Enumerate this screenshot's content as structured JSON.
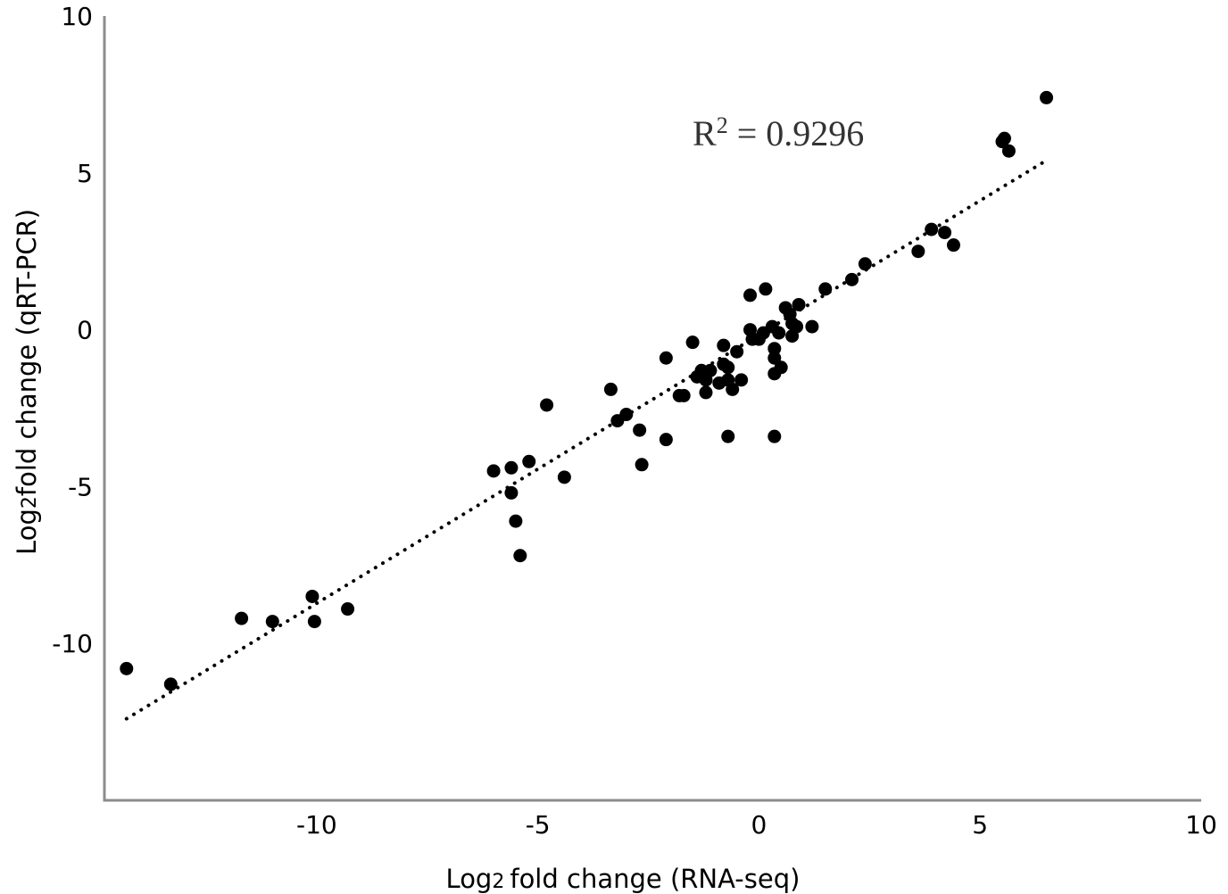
{
  "chart_data": {
    "type": "scatter",
    "xlabel": {
      "prefix": "Log",
      "sub": "2",
      "rest": "fold change (RNA-seq)"
    },
    "ylabel": {
      "prefix": "Log",
      "sub": "2",
      "rest": "fold change (qRT-PCR)"
    },
    "annotation": {
      "base": "R",
      "sup": "2",
      "rest": " = 0.9296"
    },
    "x_ticks": [
      {
        "value": -10,
        "label": "-10"
      },
      {
        "value": -5,
        "label": "-5"
      },
      {
        "value": 0,
        "label": "0"
      },
      {
        "value": 5,
        "label": "5"
      },
      {
        "value": 10,
        "label": "10"
      }
    ],
    "y_ticks": [
      {
        "value": 10,
        "label": "10"
      },
      {
        "value": 5,
        "label": "5"
      },
      {
        "value": 0,
        "label": "0"
      },
      {
        "value": -5,
        "label": "-5"
      },
      {
        "value": -10,
        "label": "-10"
      }
    ],
    "xlim": [
      -14.8,
      10
    ],
    "ylim": [
      -15,
      10
    ],
    "grid": false,
    "trendline": {
      "x": [
        -14.3,
        6.5
      ],
      "y": [
        -12.4,
        5.4
      ],
      "style": "dotted"
    },
    "series": [
      {
        "points": [
          [
            -14.3,
            -10.8
          ],
          [
            -13.3,
            -11.3
          ],
          [
            -11.7,
            -9.2
          ],
          [
            -11.0,
            -9.3
          ],
          [
            -10.1,
            -8.5
          ],
          [
            -10.05,
            -9.3
          ],
          [
            -9.3,
            -8.9
          ],
          [
            -6.0,
            -4.5
          ],
          [
            -5.6,
            -4.4
          ],
          [
            -5.6,
            -5.2
          ],
          [
            -5.5,
            -6.1
          ],
          [
            -5.4,
            -7.2
          ],
          [
            -5.2,
            -4.2
          ],
          [
            -4.8,
            -2.4
          ],
          [
            -4.4,
            -4.7
          ],
          [
            -3.35,
            -1.9
          ],
          [
            -3.2,
            -2.9
          ],
          [
            -3.0,
            -2.7
          ],
          [
            -2.7,
            -3.2
          ],
          [
            -2.65,
            -4.3
          ],
          [
            -2.1,
            -0.9
          ],
          [
            -2.1,
            -3.5
          ],
          [
            -1.8,
            -2.1
          ],
          [
            -1.7,
            -2.1
          ],
          [
            -1.5,
            -0.4
          ],
          [
            -1.4,
            -1.5
          ],
          [
            -1.3,
            -1.3
          ],
          [
            -1.2,
            -1.6
          ],
          [
            -1.2,
            -2.0
          ],
          [
            -1.1,
            -1.3
          ],
          [
            -0.9,
            -1.7
          ],
          [
            -0.8,
            -1.1
          ],
          [
            -0.8,
            -0.5
          ],
          [
            -0.7,
            -1.2
          ],
          [
            -0.7,
            -1.6
          ],
          [
            -0.7,
            -3.4
          ],
          [
            -0.6,
            -1.9
          ],
          [
            -0.5,
            -0.7
          ],
          [
            -0.4,
            -1.6
          ],
          [
            -0.2,
            1.1
          ],
          [
            -0.2,
            0.0
          ],
          [
            -0.15,
            -0.3
          ],
          [
            0.0,
            -0.3
          ],
          [
            0.1,
            -0.1
          ],
          [
            0.15,
            1.3
          ],
          [
            0.3,
            0.1
          ],
          [
            0.35,
            -0.6
          ],
          [
            0.35,
            -0.9
          ],
          [
            0.35,
            -1.4
          ],
          [
            0.35,
            -3.4
          ],
          [
            0.45,
            -0.1
          ],
          [
            0.5,
            -1.2
          ],
          [
            0.6,
            0.7
          ],
          [
            0.7,
            0.5
          ],
          [
            0.75,
            0.2
          ],
          [
            0.75,
            -0.2
          ],
          [
            0.85,
            0.1
          ],
          [
            0.9,
            0.8
          ],
          [
            1.2,
            0.1
          ],
          [
            1.5,
            1.3
          ],
          [
            2.1,
            1.6
          ],
          [
            2.4,
            2.1
          ],
          [
            3.6,
            2.5
          ],
          [
            3.9,
            3.2
          ],
          [
            4.2,
            3.1
          ],
          [
            4.4,
            2.7
          ],
          [
            5.5,
            6.0
          ],
          [
            5.55,
            6.1
          ],
          [
            5.65,
            5.7
          ],
          [
            6.5,
            7.4
          ]
        ]
      }
    ]
  }
}
